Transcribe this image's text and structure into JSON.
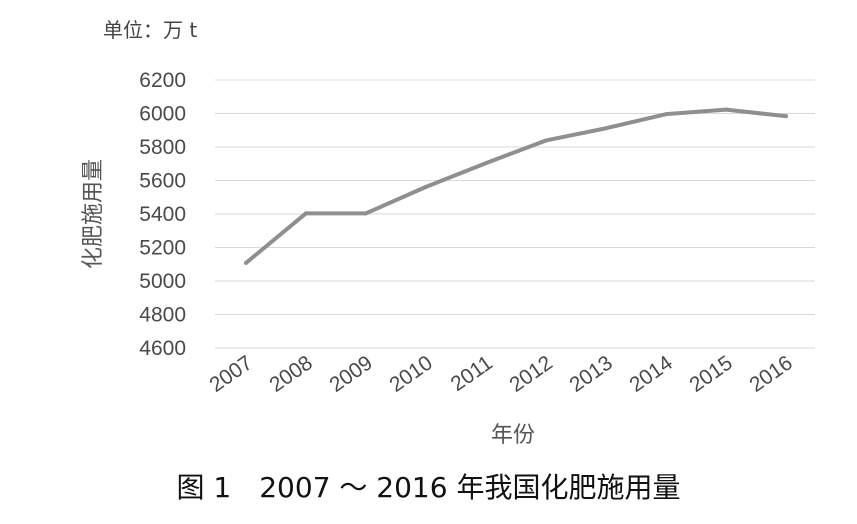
{
  "unit_text": "单位：万 t",
  "caption": "图 1　2007 ～ 2016 年我国化肥施用量",
  "chart_data": {
    "type": "line",
    "title": "",
    "xlabel": "年份",
    "ylabel": "化肥施用量",
    "categories": [
      "2007",
      "2008",
      "2009",
      "2010",
      "2011",
      "2012",
      "2013",
      "2014",
      "2015",
      "2016"
    ],
    "series": [
      {
        "values": [
          5108,
          5404,
          5404,
          5562,
          5704,
          5839,
          5912,
          5996,
          6023,
          5984
        ]
      }
    ],
    "ylim": [
      4600,
      6200
    ],
    "yticks": [
      4600,
      4800,
      5000,
      5200,
      5400,
      5600,
      5800,
      6000,
      6200
    ],
    "grid": true,
    "legend": "none",
    "line_color": "#8f8f8f",
    "grid_color": "#d9d9d9"
  }
}
